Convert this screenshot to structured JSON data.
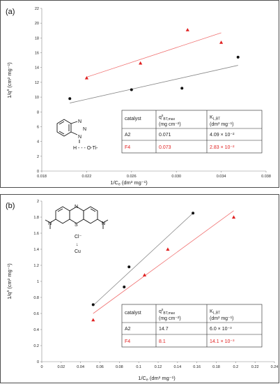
{
  "panels": [
    {
      "label": "(a)",
      "xlabel": "1/C",
      "xlabel_sub": "e",
      "xlabel_unit": " (dm³ mg⁻¹)",
      "ylabel": "1/q",
      "ylabel_sup": "s",
      "ylabel_unit": " (cm² mg⁻¹)",
      "xticks": [
        "0.018",
        "0.022",
        "0.026",
        "0.030",
        "0.034",
        "0.038"
      ],
      "yticks": [
        "0",
        "2",
        "4",
        "6",
        "8",
        "10",
        "12",
        "14",
        "16",
        "18",
        "20",
        "22"
      ],
      "molecule_label": "H - - - O-Ti-",
      "table": {
        "headers": [
          "catalyst",
          "q",
          "s",
          "BT,max",
          "(mg cm⁻²)",
          "K",
          "L,BT",
          "(dm³ mg⁻¹)"
        ],
        "rows": [
          {
            "catalyst": "A2",
            "q": "0.071",
            "k": "4.09 × 10⁻²",
            "color": "#222222"
          },
          {
            "catalyst": "F4",
            "q": "0.073",
            "k": "2.83 × 10⁻²",
            "color": "#e02020"
          }
        ]
      }
    },
    {
      "label": "(b)",
      "xlabel": "1/C",
      "xlabel_sub": "e",
      "xlabel_unit": " (dm³ mg⁻¹)",
      "ylabel": "1/q",
      "ylabel_sup": "s",
      "ylabel_unit": " (cm² mg⁻¹)",
      "xticks": [
        "0",
        "0.02",
        "0.04",
        "0.06",
        "0.08",
        "0.1",
        "0.12",
        "0.14",
        "0.16",
        "0.18",
        "0.2",
        "0.22",
        "0.24"
      ],
      "yticks": [
        "0",
        "0.2",
        "0.4",
        "0.6",
        "0.8",
        "1",
        "1.2",
        "1.4",
        "1.6",
        "1.8",
        "2"
      ],
      "molecule_labels": [
        "N",
        "S",
        "Cl⁻",
        "↓",
        "Cu"
      ],
      "table": {
        "headers": [
          "catalyst",
          "q",
          "s",
          "BT,max",
          "(mg cm⁻²)",
          "K",
          "L,BT",
          "(dm³ mg⁻¹)"
        ],
        "rows": [
          {
            "catalyst": "A2",
            "q": "14.7",
            "k": "6.0 × 10⁻³",
            "color": "#222222"
          },
          {
            "catalyst": "F4",
            "q": "8.1",
            "k": "14.1 × 10⁻³",
            "color": "#e02020"
          }
        ]
      }
    }
  ],
  "chart_data": [
    {
      "type": "scatter",
      "panel": "(a)",
      "xlim": [
        0.018,
        0.038
      ],
      "ylim": [
        0,
        22
      ],
      "series": [
        {
          "name": "A2",
          "color": "#111111",
          "marker": "circle",
          "x": [
            0.0205,
            0.026,
            0.0305,
            0.0355
          ],
          "y": [
            9.8,
            11.0,
            11.2,
            15.4
          ],
          "fit": [
            [
              0.0205,
              9.2
            ],
            [
              0.0355,
              14.3
            ]
          ]
        },
        {
          "name": "F4",
          "color": "#e02020",
          "marker": "triangle",
          "x": [
            0.022,
            0.0268,
            0.031,
            0.034
          ],
          "y": [
            12.6,
            14.6,
            19.1,
            17.4
          ],
          "fit": [
            [
              0.022,
              12.7
            ],
            [
              0.034,
              18.7
            ]
          ]
        }
      ]
    },
    {
      "type": "scatter",
      "panel": "(b)",
      "xlim": [
        0,
        0.24
      ],
      "ylim": [
        0,
        2
      ],
      "series": [
        {
          "name": "A2",
          "color": "#111111",
          "marker": "circle",
          "x": [
            0.053,
            0.085,
            0.09,
            0.156
          ],
          "y": [
            0.71,
            0.93,
            1.18,
            1.85
          ],
          "fit": [
            [
              0.053,
              0.7
            ],
            [
              0.156,
              1.85
            ]
          ]
        },
        {
          "name": "F4",
          "color": "#e02020",
          "marker": "triangle",
          "x": [
            0.053,
            0.106,
            0.13,
            0.198
          ],
          "y": [
            0.52,
            1.08,
            1.4,
            1.8
          ],
          "fit": [
            [
              0.053,
              0.6
            ],
            [
              0.198,
              1.88
            ]
          ]
        }
      ]
    }
  ]
}
